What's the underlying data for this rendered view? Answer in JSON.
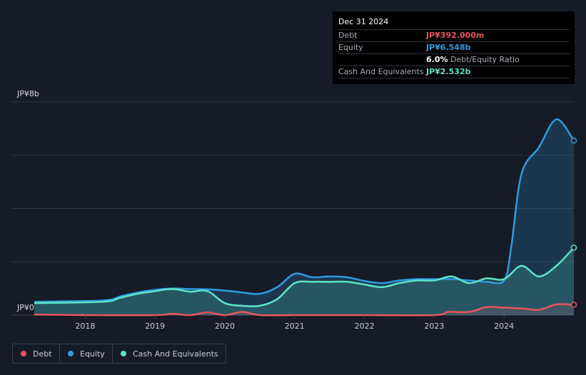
{
  "tooltip": {
    "date": "Dec 31 2024",
    "rows": [
      {
        "label": "Debt",
        "value": "JP¥392.000m",
        "color": "#e8555b"
      },
      {
        "label": "Equity",
        "value": "JP¥6.548b",
        "color": "#2f9be0"
      },
      {
        "label": "",
        "value": "6.0%",
        "suffix": "Debt/Equity Ratio",
        "color": "#ffffff"
      },
      {
        "label": "Cash And Equivalents",
        "value": "JP¥2.532b",
        "color": "#5de3c6"
      }
    ]
  },
  "legend": [
    {
      "label": "Debt",
      "color": "#e8555b"
    },
    {
      "label": "Equity",
      "color": "#2f9be0"
    },
    {
      "label": "Cash And Equivalents",
      "color": "#5de3c6"
    }
  ],
  "chart_data": {
    "type": "area",
    "ylabel_top": "JP¥8b",
    "ylabel_bottom": "JP¥0",
    "ylim": [
      0,
      8
    ],
    "xlim": [
      2017.27,
      2025.0
    ],
    "x_ticks": [
      2018,
      2019,
      2020,
      2021,
      2022,
      2023,
      2024
    ],
    "grid": true,
    "series": [
      {
        "name": "Debt",
        "color": "#e8555b",
        "x": [
          2017.27,
          2018.0,
          2019.0,
          2019.25,
          2019.5,
          2019.75,
          2020.0,
          2020.25,
          2020.5,
          2021.0,
          2022.0,
          2023.0,
          2023.2,
          2023.5,
          2023.75,
          2024.0,
          2024.25,
          2024.5,
          2024.75,
          2025.0
        ],
        "values": [
          0.02,
          0.0,
          0.0,
          0.05,
          0.0,
          0.1,
          0.0,
          0.12,
          0.0,
          0.0,
          0.0,
          0.0,
          0.12,
          0.12,
          0.3,
          0.28,
          0.25,
          0.2,
          0.4,
          0.39
        ]
      },
      {
        "name": "Equity",
        "color": "#2f9be0",
        "x": [
          2017.27,
          2018.25,
          2018.5,
          2018.75,
          2019.0,
          2019.25,
          2019.5,
          2019.75,
          2020.0,
          2020.25,
          2020.5,
          2020.75,
          2021.0,
          2021.25,
          2021.5,
          2021.75,
          2022.0,
          2022.25,
          2022.5,
          2022.75,
          2023.0,
          2023.25,
          2023.5,
          2023.75,
          2024.0,
          2024.1,
          2024.25,
          2024.5,
          2024.75,
          2025.0
        ],
        "values": [
          0.5,
          0.55,
          0.7,
          0.85,
          0.95,
          1.0,
          0.98,
          0.97,
          0.92,
          0.85,
          0.8,
          1.05,
          1.55,
          1.42,
          1.45,
          1.42,
          1.28,
          1.2,
          1.3,
          1.35,
          1.35,
          1.35,
          1.3,
          1.25,
          1.3,
          2.5,
          5.3,
          6.3,
          7.35,
          6.55
        ]
      },
      {
        "name": "Cash And Equivalents",
        "color": "#5de3c6",
        "x": [
          2017.27,
          2018.25,
          2018.5,
          2018.75,
          2019.0,
          2019.25,
          2019.5,
          2019.75,
          2020.0,
          2020.25,
          2020.5,
          2020.75,
          2021.0,
          2021.25,
          2021.5,
          2021.75,
          2022.0,
          2022.25,
          2022.5,
          2022.75,
          2023.0,
          2023.25,
          2023.5,
          2023.75,
          2024.0,
          2024.25,
          2024.5,
          2024.75,
          2025.0
        ],
        "values": [
          0.45,
          0.5,
          0.65,
          0.8,
          0.9,
          0.98,
          0.88,
          0.9,
          0.45,
          0.35,
          0.35,
          0.6,
          1.2,
          1.25,
          1.25,
          1.25,
          1.15,
          1.05,
          1.2,
          1.3,
          1.3,
          1.45,
          1.2,
          1.38,
          1.35,
          1.85,
          1.45,
          1.85,
          2.53
        ]
      }
    ]
  }
}
